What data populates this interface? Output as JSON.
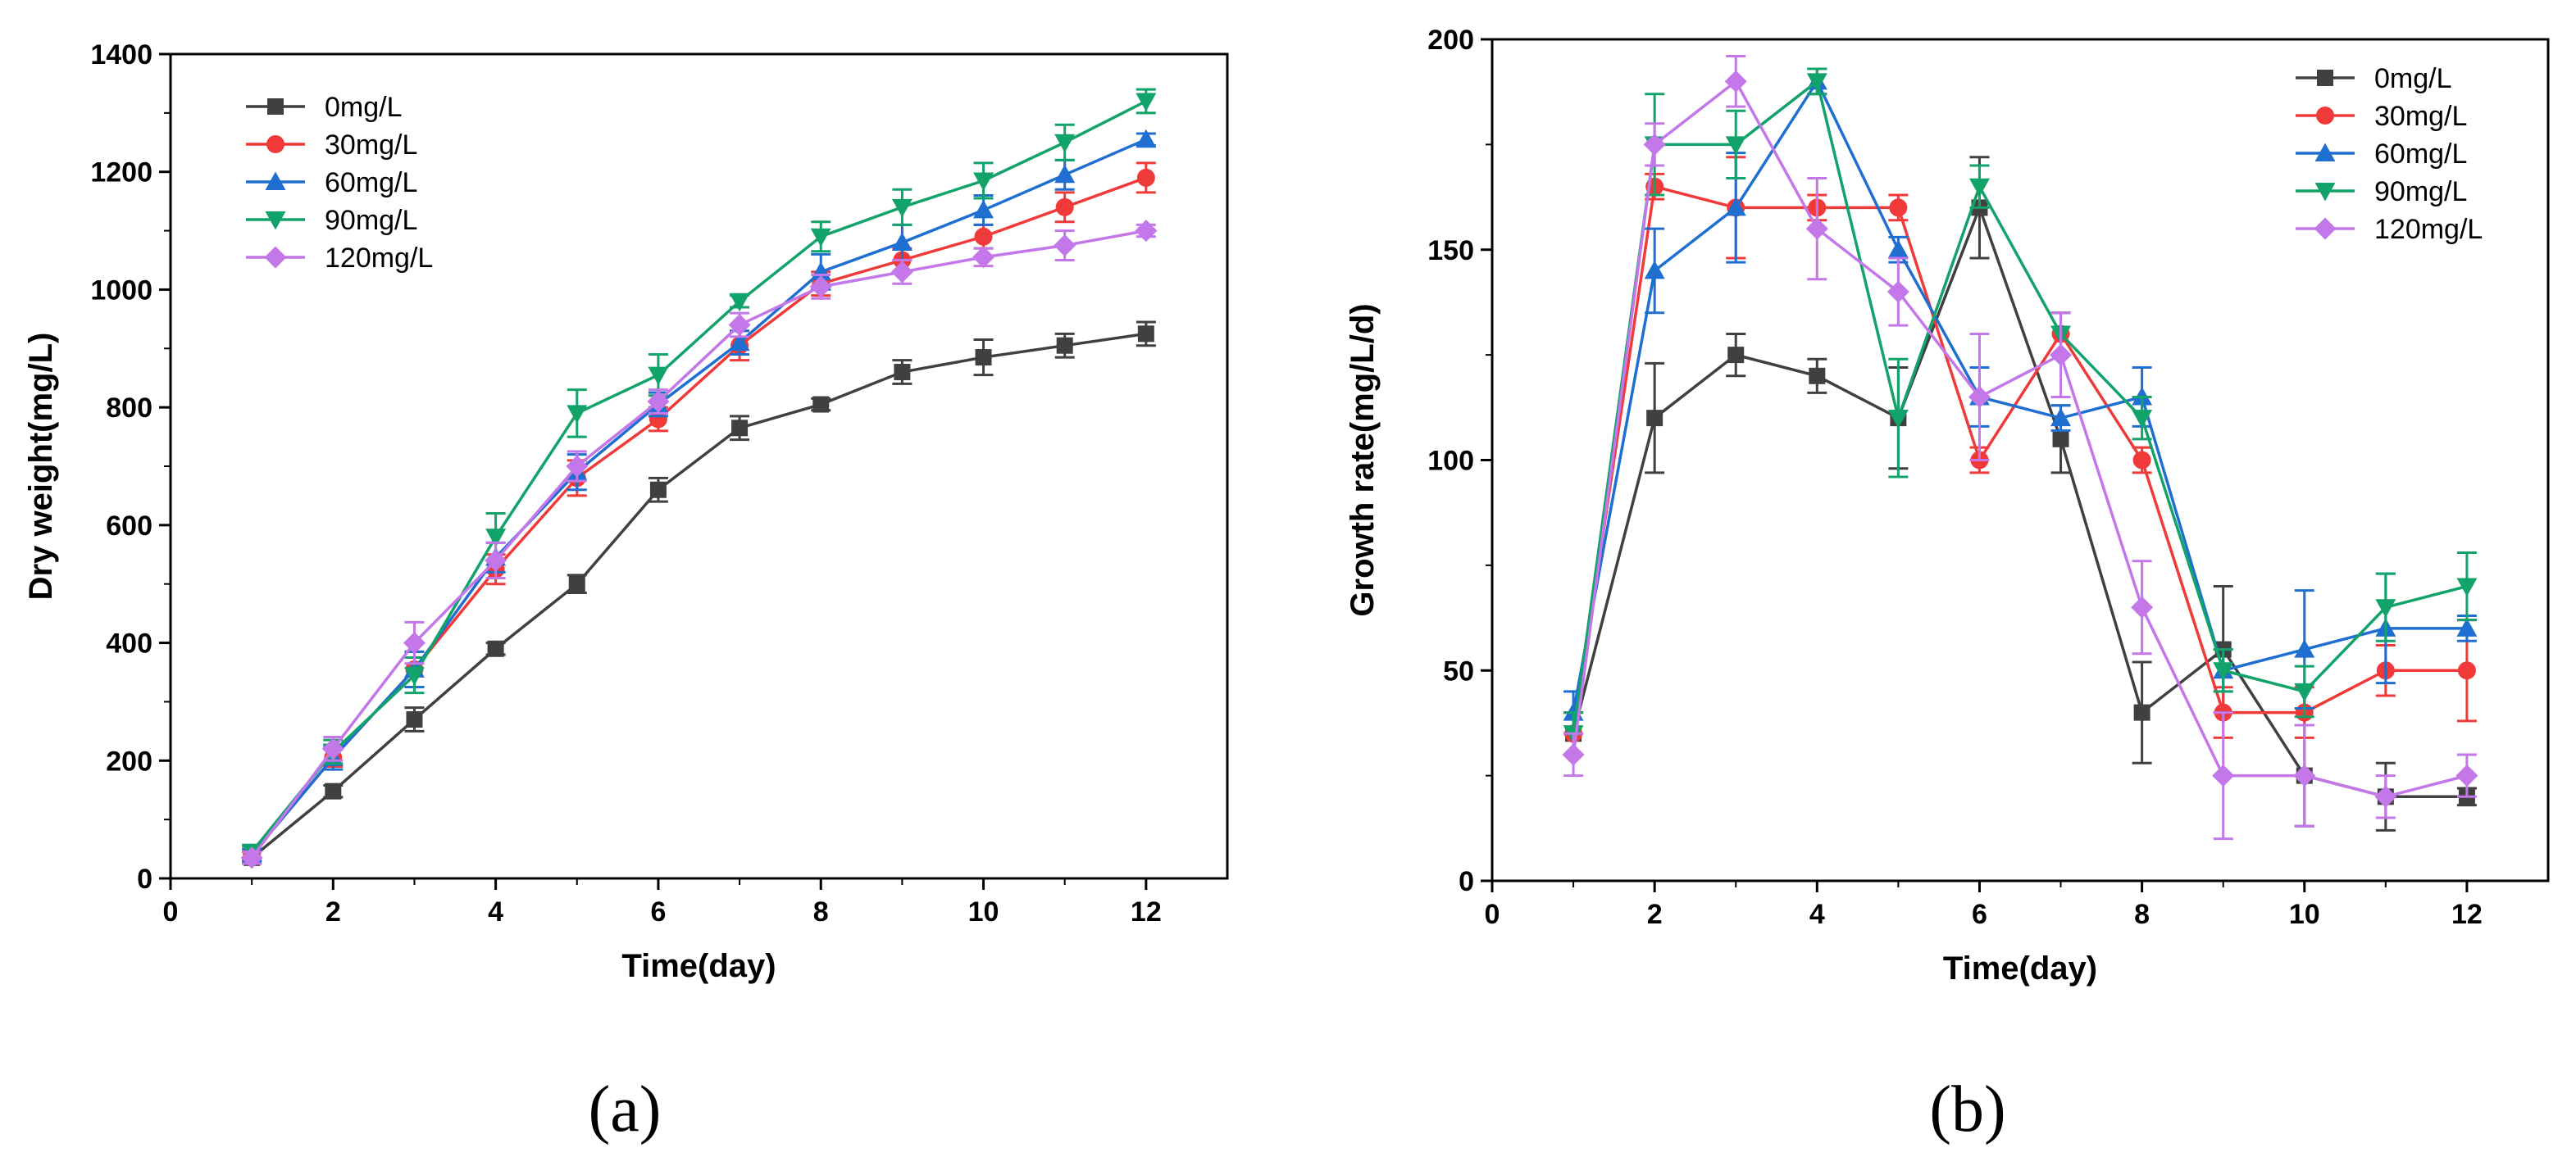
{
  "chart_data": [
    {
      "type": "line",
      "panel_label": "(a)",
      "xlabel": "Time(day)",
      "ylabel": "Dry weight(mg/L)",
      "xlim": [
        0,
        13
      ],
      "ylim": [
        0,
        1400
      ],
      "xticks": [
        "0",
        "2",
        "4",
        "6",
        "8",
        "10",
        "12"
      ],
      "yticks": [
        "0",
        "200",
        "400",
        "600",
        "800",
        "1000",
        "1200",
        "1400"
      ],
      "legend_position": "top-left",
      "x": [
        1,
        2,
        3,
        4,
        5,
        6,
        7,
        8,
        9,
        10,
        11,
        12
      ],
      "series": [
        {
          "name": "0mg/L",
          "color": "#404040",
          "marker": "square",
          "values": [
            35,
            148,
            270,
            390,
            500,
            660,
            765,
            805,
            860,
            885,
            905,
            925
          ],
          "errors": [
            10,
            10,
            20,
            10,
            15,
            20,
            20,
            10,
            20,
            30,
            20,
            20
          ]
        },
        {
          "name": "30mg/L",
          "color": "#f03a3a",
          "marker": "circle",
          "values": [
            40,
            205,
            355,
            525,
            680,
            780,
            905,
            1010,
            1050,
            1090,
            1140,
            1190
          ],
          "errors": [
            10,
            15,
            30,
            25,
            30,
            20,
            25,
            20,
            20,
            20,
            25,
            25
          ]
        },
        {
          "name": "60mg/L",
          "color": "#1f6fd1",
          "marker": "triangle-up",
          "values": [
            40,
            205,
            355,
            545,
            690,
            805,
            910,
            1030,
            1080,
            1135,
            1195,
            1255
          ],
          "errors": [
            10,
            20,
            30,
            25,
            30,
            20,
            20,
            30,
            30,
            25,
            25,
            10
          ]
        },
        {
          "name": "90mg/L",
          "color": "#12a36a",
          "marker": "triangle-down",
          "values": [
            45,
            215,
            345,
            580,
            790,
            855,
            980,
            1090,
            1140,
            1185,
            1250,
            1320
          ],
          "errors": [
            10,
            20,
            30,
            40,
            40,
            35,
            10,
            25,
            30,
            30,
            30,
            20
          ]
        },
        {
          "name": "120mg/L",
          "color": "#c377e8",
          "marker": "diamond",
          "values": [
            35,
            220,
            400,
            540,
            700,
            810,
            940,
            1005,
            1030,
            1055,
            1075,
            1100
          ],
          "errors": [
            10,
            20,
            35,
            30,
            25,
            20,
            20,
            20,
            20,
            15,
            25,
            10
          ]
        }
      ]
    },
    {
      "type": "line",
      "panel_label": "(b)",
      "xlabel": "Time(day)",
      "ylabel": "Growth rate(mg/L/d)",
      "xlim": [
        0,
        13
      ],
      "ylim": [
        0,
        200
      ],
      "xticks": [
        "0",
        "2",
        "4",
        "6",
        "8",
        "10",
        "12"
      ],
      "yticks": [
        "0",
        "50",
        "100",
        "150",
        "200"
      ],
      "legend_position": "top-right",
      "x": [
        1,
        2,
        3,
        4,
        5,
        6,
        7,
        8,
        9,
        10,
        11,
        12
      ],
      "series": [
        {
          "name": "0mg/L",
          "color": "#404040",
          "marker": "square",
          "values": [
            35,
            110,
            125,
            120,
            110,
            160,
            105,
            40,
            55,
            25,
            20,
            20
          ],
          "errors": [
            5,
            13,
            5,
            4,
            12,
            12,
            8,
            12,
            15,
            12,
            8,
            2
          ]
        },
        {
          "name": "30mg/L",
          "color": "#f03a3a",
          "marker": "circle",
          "values": [
            35,
            165,
            160,
            160,
            160,
            100,
            130,
            100,
            40,
            40,
            50,
            50
          ],
          "errors": [
            5,
            3,
            12,
            3,
            3,
            3,
            5,
            3,
            6,
            6,
            6,
            12
          ]
        },
        {
          "name": "60mg/L",
          "color": "#1f6fd1",
          "marker": "triangle-up",
          "values": [
            40,
            145,
            160,
            190,
            150,
            115,
            110,
            115,
            50,
            55,
            60,
            60
          ],
          "errors": [
            5,
            10,
            13,
            3,
            3,
            7,
            3,
            7,
            5,
            14,
            13,
            3
          ]
        },
        {
          "name": "90mg/L",
          "color": "#12a36a",
          "marker": "triangle-down",
          "values": [
            35,
            175,
            175,
            190,
            110,
            165,
            130,
            110,
            50,
            45,
            65,
            70
          ],
          "errors": [
            5,
            12,
            8,
            3,
            14,
            5,
            5,
            5,
            5,
            6,
            8,
            8
          ]
        },
        {
          "name": "120mg/L",
          "color": "#c377e8",
          "marker": "diamond",
          "values": [
            30,
            175,
            190,
            155,
            140,
            115,
            125,
            65,
            25,
            25,
            20,
            25
          ],
          "errors": [
            5,
            5,
            6,
            12,
            8,
            15,
            10,
            11,
            15,
            12,
            5,
            5
          ]
        }
      ]
    }
  ]
}
